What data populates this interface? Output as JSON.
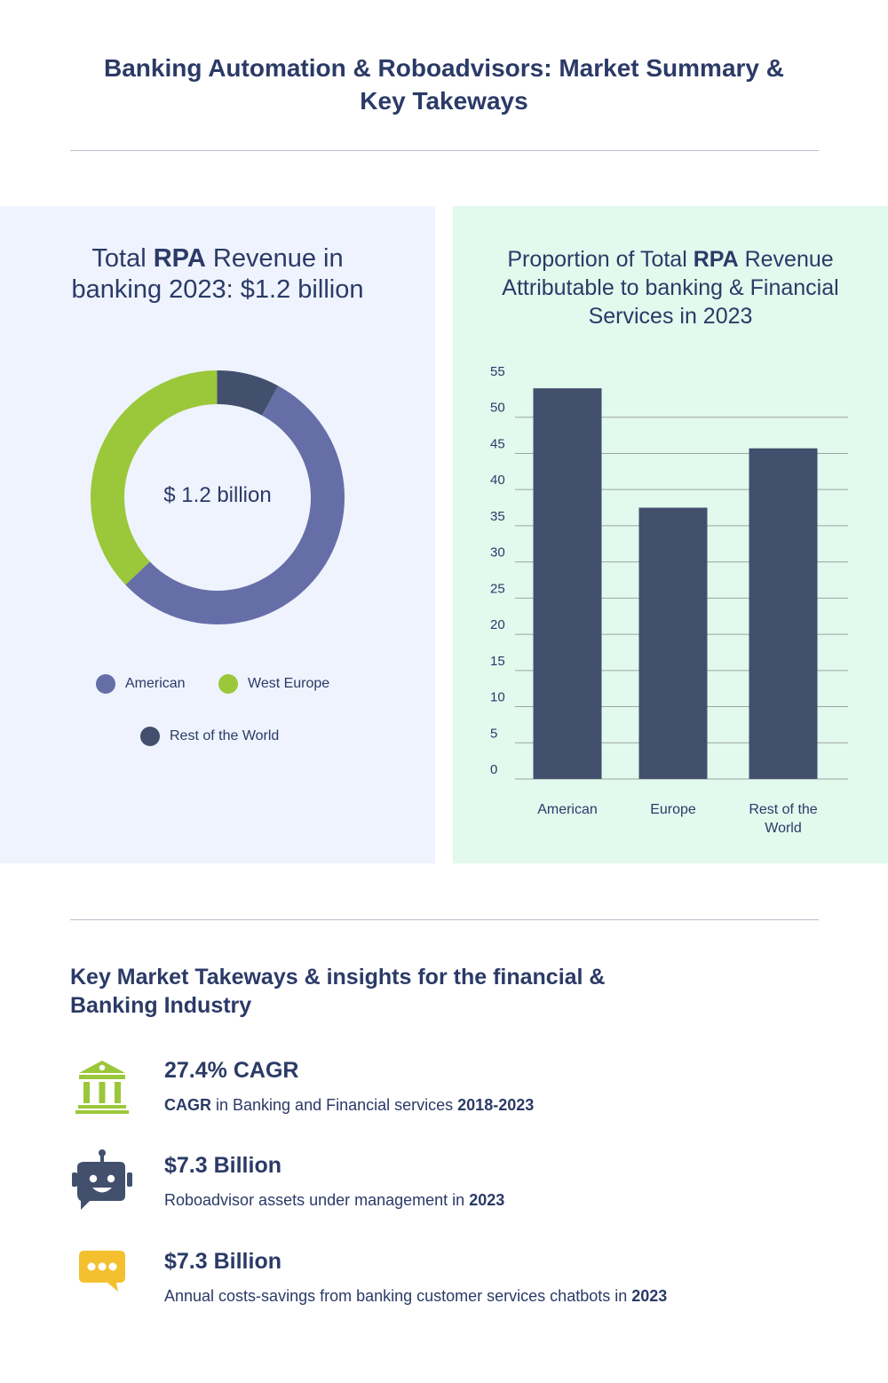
{
  "header": {
    "title": "Banking Automation & Roboadvisors: Market Summary & Key Takeways"
  },
  "donut_panel": {
    "title_pre": "Total ",
    "title_bold": "RPA",
    "title_post": " Revenue in banking 2023: $1.2 billion",
    "center_label": "$ 1.2 billion"
  },
  "bar_panel": {
    "title_pre": "Proportion of Total ",
    "title_bold": "RPA",
    "title_post": " Revenue Attributable to banking & Financial Services in 2023"
  },
  "chart_data": [
    {
      "type": "pie",
      "title": "Total RPA Revenue in banking 2023: $1.2 billion",
      "center_label": "$ 1.2 billion",
      "categories": [
        "American",
        "West Europe",
        "Rest of the World"
      ],
      "values": [
        55,
        37,
        8
      ],
      "colors": [
        "#666ea8",
        "#9bc73a",
        "#42506d"
      ],
      "legend": "bottom"
    },
    {
      "type": "bar",
      "title": "Proportion of Total RPA Revenue Attributable to banking & Financial Services in 2023",
      "categories": [
        "American",
        "Europe",
        "Rest of the World"
      ],
      "values": [
        54,
        37.5,
        45.7
      ],
      "ylim": [
        0,
        55
      ],
      "yticks": [
        0,
        5,
        10,
        15,
        20,
        25,
        30,
        35,
        40,
        45,
        50,
        55
      ],
      "grid": true,
      "color": "#42506d"
    }
  ],
  "takeaways": {
    "title": "Key Market Takeways & insights for the financial & Banking Industry",
    "items": [
      {
        "icon": "bank-icon",
        "headline": "27.4% CAGR",
        "desc_bold_start": "CAGR",
        "desc_text": " in Banking and Financial services ",
        "desc_bold_end": "2018-2023"
      },
      {
        "icon": "robot-icon",
        "headline": "$7.3 Billion",
        "desc_bold_start": "",
        "desc_text": "Roboadvisor assets under management in ",
        "desc_bold_end": "2023"
      },
      {
        "icon": "chat-bubble-icon",
        "headline": "$7.3 Billion",
        "desc_bold_start": "",
        "desc_text": "Annual costs-savings from banking customer services chatbots in ",
        "desc_bold_end": "2023"
      }
    ]
  },
  "colors": {
    "navy": "#2b3a67",
    "slate": "#42506d",
    "periwinkle": "#666ea8",
    "lime": "#9bc73a",
    "yellow": "#f5c02f",
    "panel_left_bg": "#eef3fd",
    "panel_right_bg": "#e2f9ee"
  }
}
